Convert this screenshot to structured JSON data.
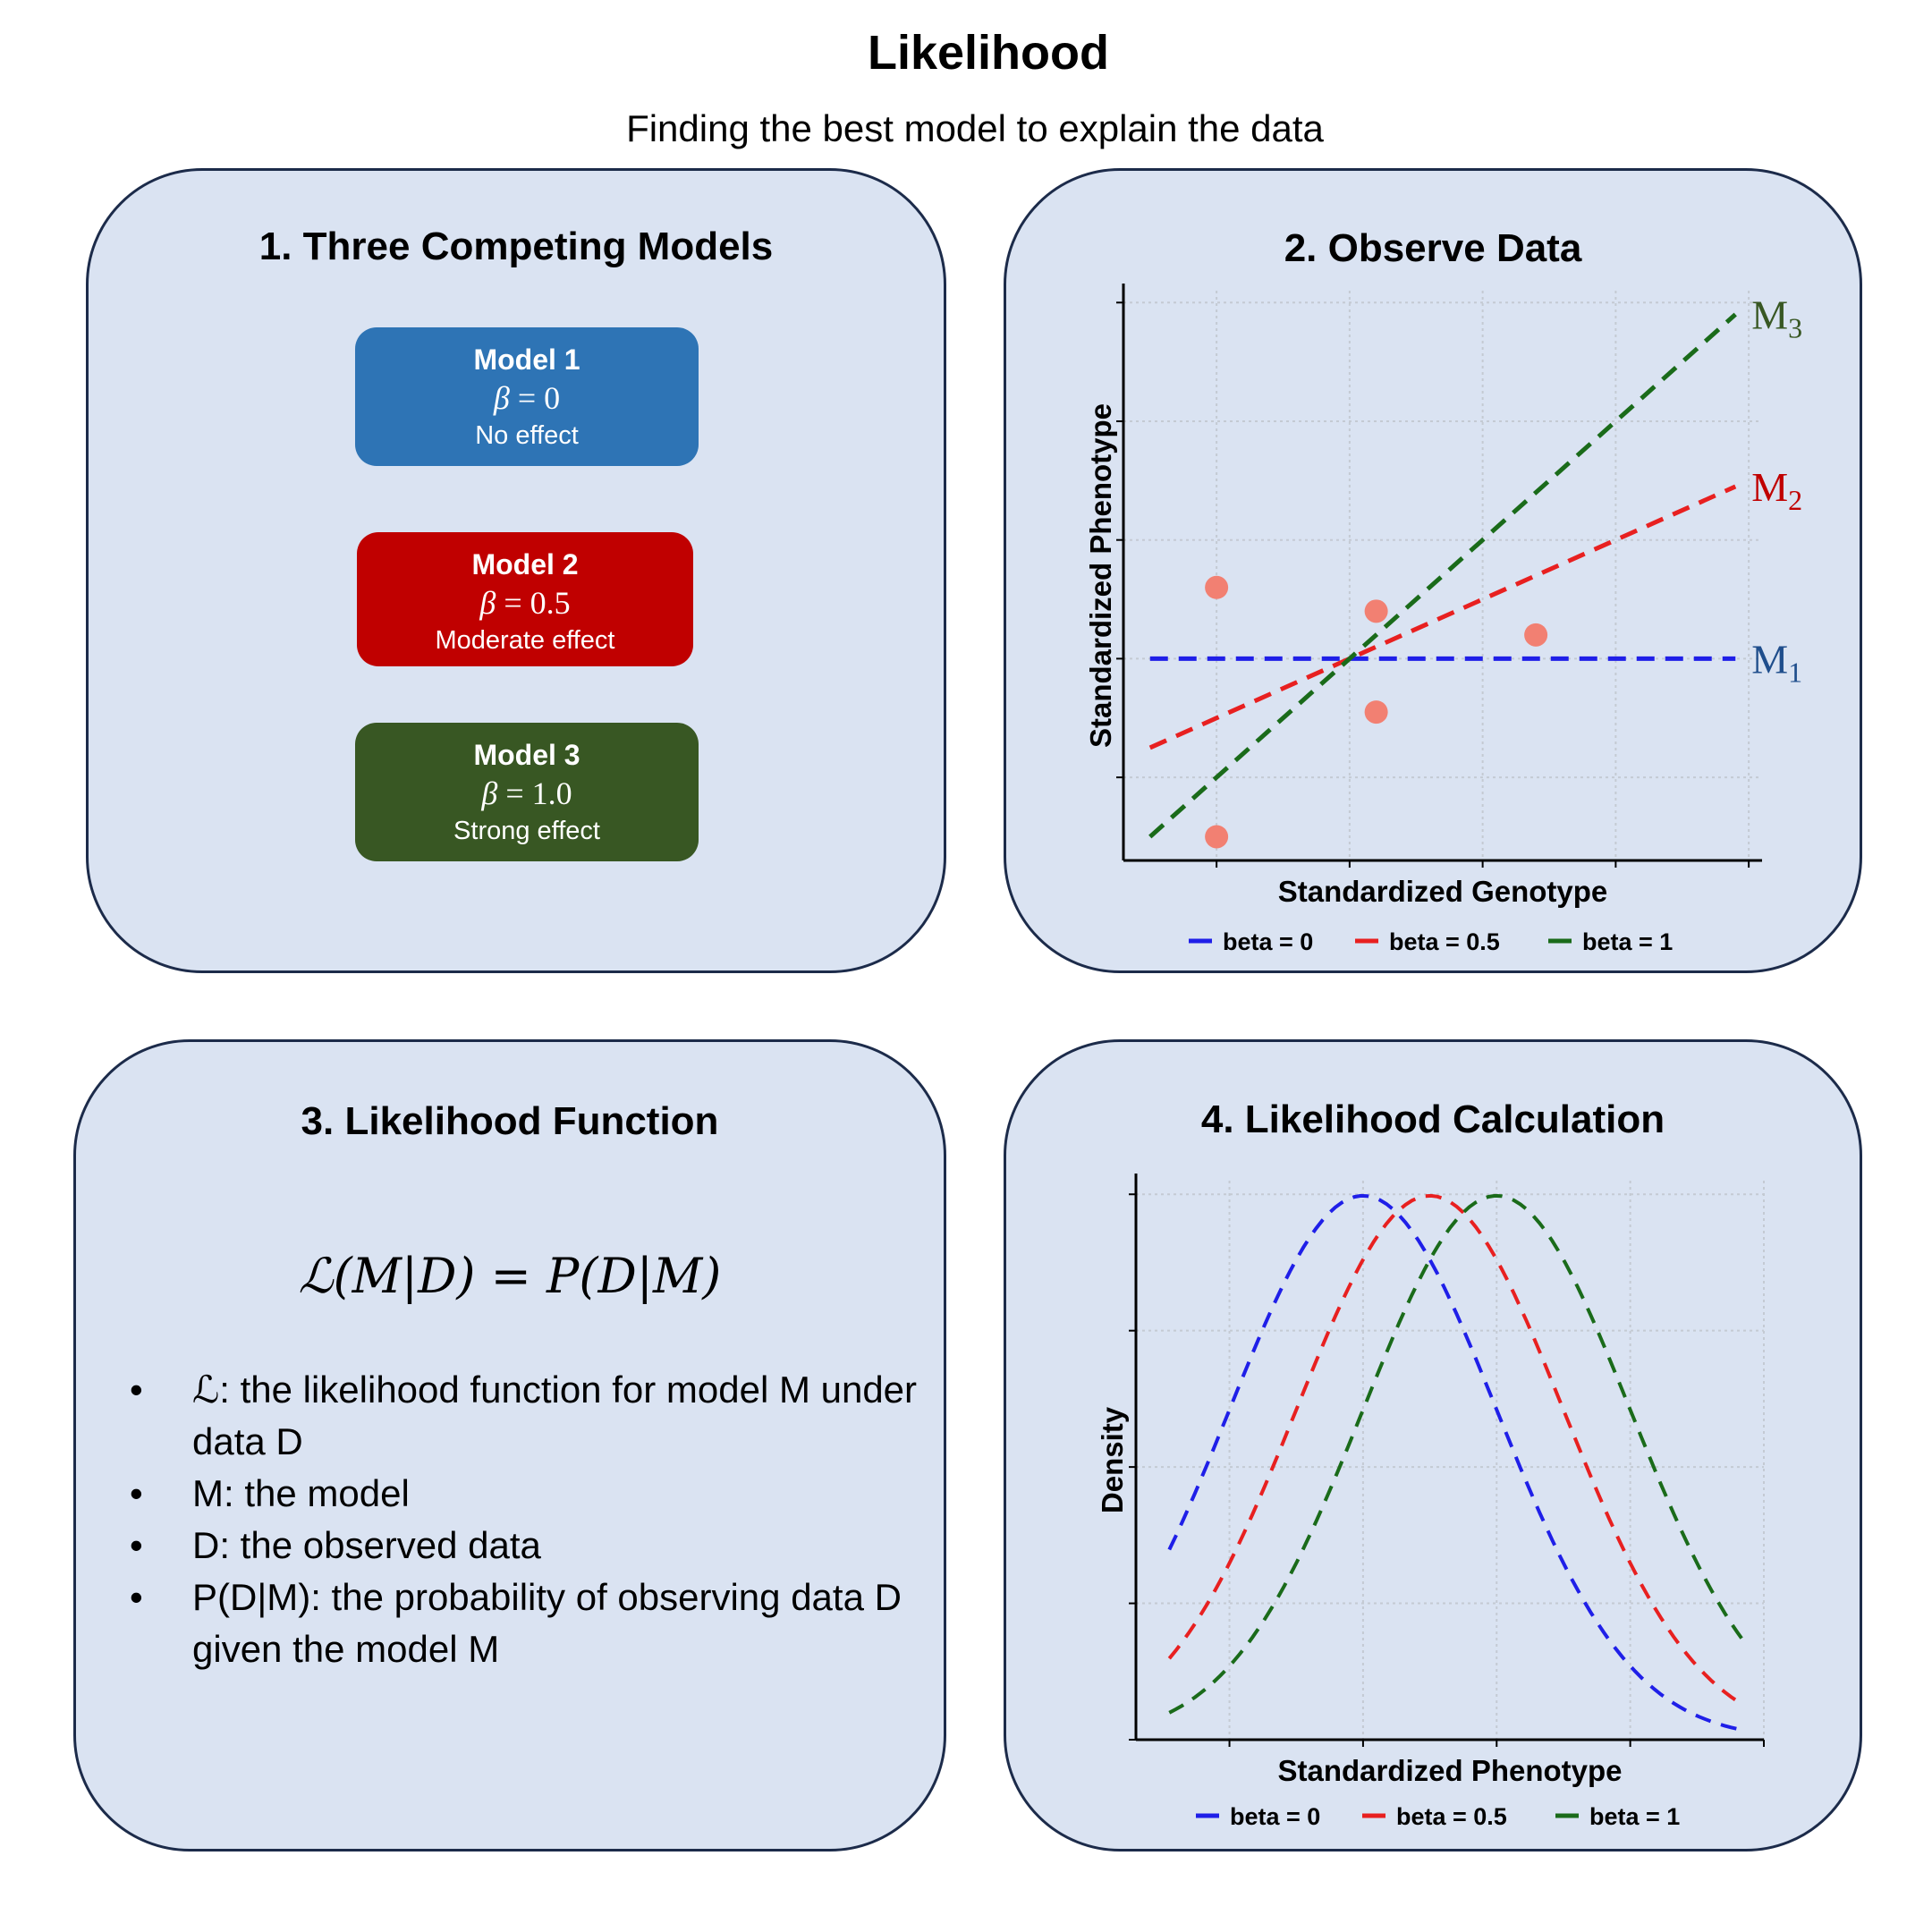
{
  "title": "Likelihood",
  "subtitle": "Finding the best model to explain the data",
  "panel1": {
    "title": "1. Three Competing Models",
    "models": [
      {
        "name": "Model 1",
        "beta_value": "0",
        "desc": "No effect",
        "color": "#2e74b5"
      },
      {
        "name": "Model 2",
        "beta_value": "0.5",
        "desc": "Moderate effect",
        "color": "#c00000"
      },
      {
        "name": "Model 3",
        "beta_value": "1.0",
        "desc": "Strong effect",
        "color": "#385723"
      }
    ]
  },
  "panel2": {
    "title": "2. Observe Data"
  },
  "panel3": {
    "title": "3. Likelihood Function",
    "formula": "ℒ(M|D) = P(D|M)",
    "bullets": [
      "ℒ: the likelihood function for model M under data D",
      "M: the model",
      "D: the observed data",
      "P(D|M): the probability of observing data D given the model M"
    ]
  },
  "panel4": {
    "title": "4. Likelihood Calculation"
  },
  "chart_data": [
    {
      "type": "scatter",
      "title": "2. Observe Data",
      "xlabel": "Standardized Genotype",
      "ylabel": "Standardized Phenotype",
      "xlim": [
        -1.7,
        3.1
      ],
      "ylim": [
        -1.7,
        3.1
      ],
      "points": [
        {
          "x": -1,
          "y": 0.6
        },
        {
          "x": -1,
          "y": -1.5
        },
        {
          "x": 0.2,
          "y": 0.4
        },
        {
          "x": 0.2,
          "y": -0.45
        },
        {
          "x": 1.4,
          "y": 0.2
        }
      ],
      "series": [
        {
          "name": "beta = 0",
          "slope": 0,
          "label": "M",
          "sub": "1",
          "color": "#1f1fe8",
          "label_color": "#1f4e8c"
        },
        {
          "name": "beta = 0.5",
          "slope": 0.5,
          "label": "M",
          "sub": "2",
          "color": "#e82020",
          "label_color": "#c00000"
        },
        {
          "name": "beta = 1",
          "slope": 1,
          "label": "M",
          "sub": "3",
          "color": "#1a6b1a",
          "label_color": "#385723"
        }
      ],
      "line_x_range": [
        -1.5,
        2.9
      ],
      "legend": "bottom"
    },
    {
      "type": "line",
      "title": "4. Likelihood Calculation",
      "xlabel": "Standardized Phenotype",
      "ylabel": "Density",
      "xlim": [
        -1.7,
        3.0
      ],
      "ylim": [
        0.0,
        0.41
      ],
      "x_range": [
        -1.45,
        2.85
      ],
      "series": [
        {
          "name": "beta = 0",
          "mean": 0,
          "sd": 1,
          "color": "#1f1fe8"
        },
        {
          "name": "beta = 0.5",
          "mean": 0.5,
          "sd": 1,
          "color": "#e82020"
        },
        {
          "name": "beta = 1",
          "mean": 1,
          "sd": 1,
          "color": "#1a6b1a"
        }
      ],
      "legend": "bottom"
    }
  ]
}
